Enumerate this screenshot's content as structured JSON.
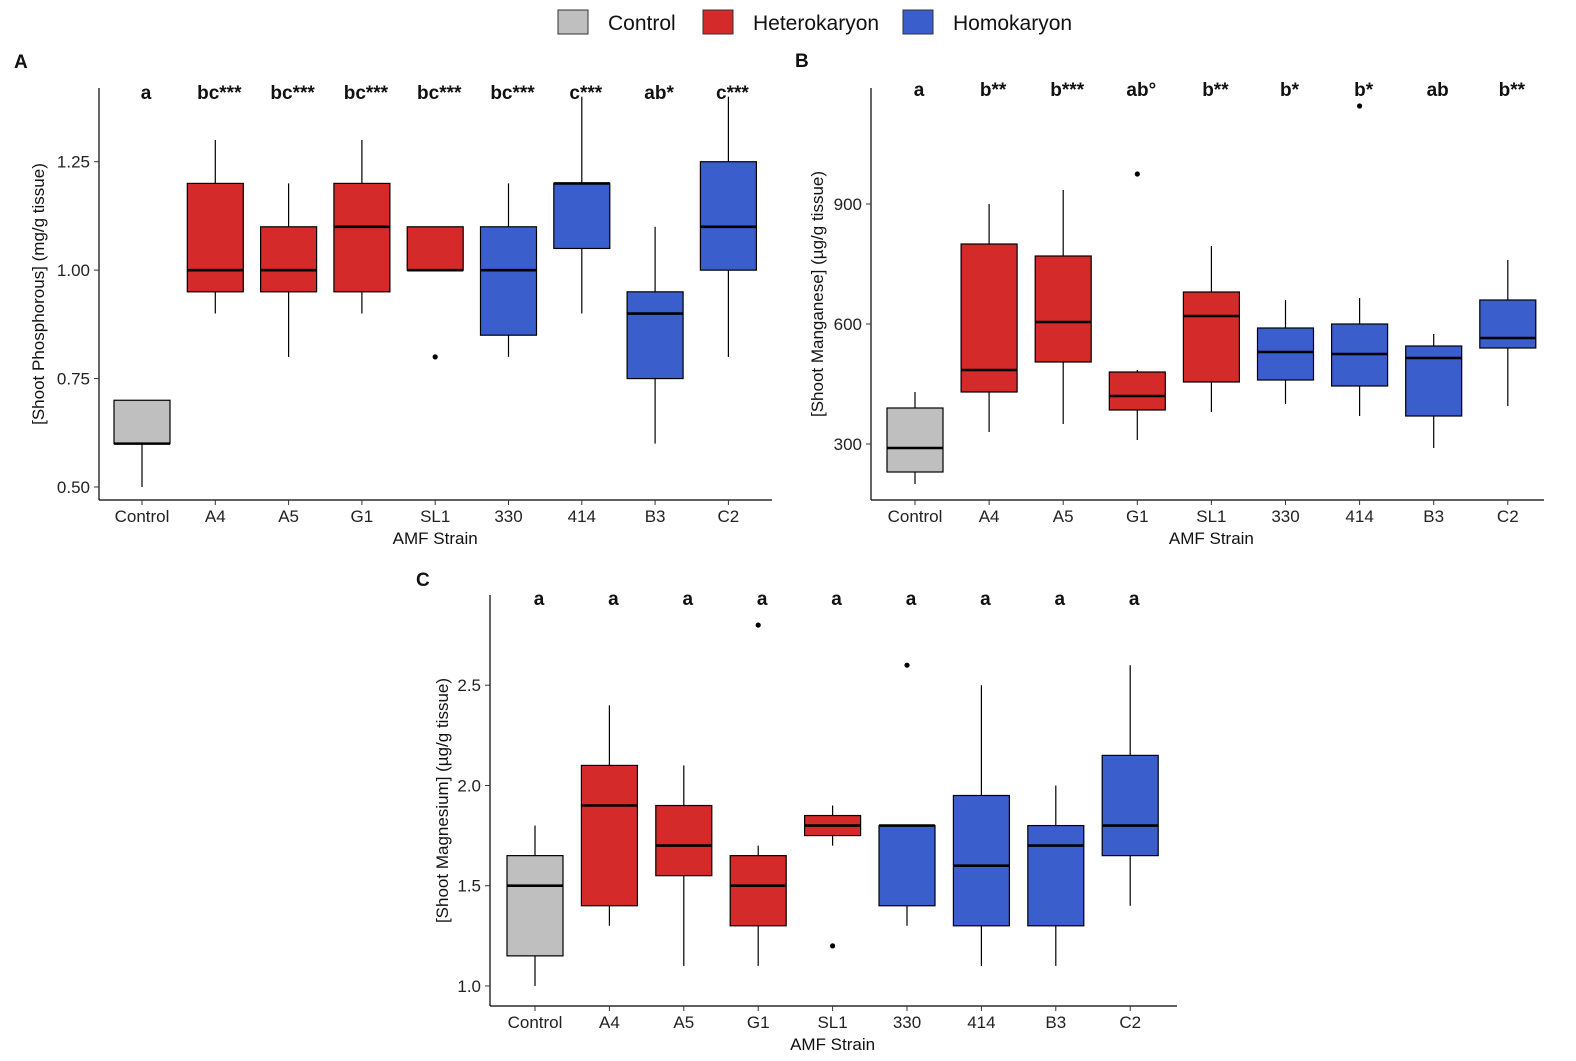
{
  "legend": [
    {
      "label": "Control",
      "color": "#bfbfbf"
    },
    {
      "label": "Heterokaryon",
      "color": "#d42a2a"
    },
    {
      "label": "Homokaryon",
      "color": "#3a5fcd"
    }
  ],
  "chart_data": [
    {
      "panel": "A",
      "type": "box",
      "xlabel": "AMF Strain",
      "ylabel": "[Shoot Phosphorous] (mg/g tissue)",
      "ylim": [
        0.47,
        1.42
      ],
      "yticks": [
        0.5,
        0.75,
        1.0,
        1.25
      ],
      "ytick_labels": [
        "0.50",
        "0.75",
        "1.00",
        "1.25"
      ],
      "categories": [
        "Control",
        "A4",
        "A5",
        "G1",
        "SL1",
        "330",
        "414",
        "B3",
        "C2"
      ],
      "groups": [
        "Control",
        "Heterokaryon",
        "Heterokaryon",
        "Heterokaryon",
        "Heterokaryon",
        "Homokaryon",
        "Homokaryon",
        "Homokaryon",
        "Homokaryon"
      ],
      "boxes": [
        {
          "min": 0.5,
          "q1": 0.6,
          "median": 0.6,
          "q3": 0.7,
          "max": 0.7,
          "outliers": []
        },
        {
          "min": 0.9,
          "q1": 0.95,
          "median": 1.0,
          "q3": 1.2,
          "max": 1.3,
          "outliers": []
        },
        {
          "min": 0.8,
          "q1": 0.95,
          "median": 1.0,
          "q3": 1.1,
          "max": 1.2,
          "outliers": []
        },
        {
          "min": 0.9,
          "q1": 0.95,
          "median": 1.1,
          "q3": 1.2,
          "max": 1.3,
          "outliers": []
        },
        {
          "min": 1.0,
          "q1": 1.0,
          "median": 1.0,
          "q3": 1.1,
          "max": 1.1,
          "outliers": [
            0.8
          ]
        },
        {
          "min": 0.8,
          "q1": 0.85,
          "median": 1.0,
          "q3": 1.1,
          "max": 1.2,
          "outliers": []
        },
        {
          "min": 0.9,
          "q1": 1.05,
          "median": 1.2,
          "q3": 1.2,
          "max": 1.4,
          "outliers": []
        },
        {
          "min": 0.6,
          "q1": 0.75,
          "median": 0.9,
          "q3": 0.95,
          "max": 1.1,
          "outliers": []
        },
        {
          "min": 0.8,
          "q1": 1.0,
          "median": 1.1,
          "q3": 1.25,
          "max": 1.4,
          "outliers": []
        }
      ],
      "sig_letters": [
        "a",
        "bc***",
        "bc***",
        "bc***",
        "bc***",
        "bc***",
        "c***",
        "ab*",
        "c***"
      ]
    },
    {
      "panel": "B",
      "type": "box",
      "xlabel": "AMF Strain",
      "ylabel": "[Shoot Manganese] (µg/g tissue)",
      "ylim": [
        160,
        1190
      ],
      "yticks": [
        300,
        600,
        900
      ],
      "ytick_labels": [
        "300",
        "600",
        "900"
      ],
      "categories": [
        "Control",
        "A4",
        "A5",
        "G1",
        "SL1",
        "330",
        "414",
        "B3",
        "C2"
      ],
      "groups": [
        "Control",
        "Heterokaryon",
        "Heterokaryon",
        "Heterokaryon",
        "Heterokaryon",
        "Homokaryon",
        "Homokaryon",
        "Homokaryon",
        "Homokaryon"
      ],
      "boxes": [
        {
          "min": 200,
          "q1": 230,
          "median": 290,
          "q3": 390,
          "max": 430,
          "outliers": []
        },
        {
          "min": 330,
          "q1": 430,
          "median": 485,
          "q3": 800,
          "max": 900,
          "outliers": []
        },
        {
          "min": 350,
          "q1": 505,
          "median": 605,
          "q3": 770,
          "max": 935,
          "outliers": []
        },
        {
          "min": 310,
          "q1": 385,
          "median": 420,
          "q3": 480,
          "max": 485,
          "outliers": [
            975
          ]
        },
        {
          "min": 380,
          "q1": 455,
          "median": 620,
          "q3": 680,
          "max": 795,
          "outliers": []
        },
        {
          "min": 400,
          "q1": 460,
          "median": 530,
          "q3": 590,
          "max": 660,
          "outliers": []
        },
        {
          "min": 370,
          "q1": 445,
          "median": 525,
          "q3": 600,
          "max": 665,
          "outliers": [
            1145
          ]
        },
        {
          "min": 290,
          "q1": 370,
          "median": 515,
          "q3": 545,
          "max": 575,
          "outliers": []
        },
        {
          "min": 395,
          "q1": 540,
          "median": 565,
          "q3": 660,
          "max": 760,
          "outliers": []
        }
      ],
      "sig_letters": [
        "a",
        "b**",
        "b***",
        "ab°",
        "b**",
        "b*",
        "b*",
        "ab",
        "b**"
      ]
    },
    {
      "panel": "C",
      "type": "box",
      "xlabel": "AMF Strain",
      "ylabel": "[Shoot Magnesium] (µg/g tissue)",
      "ylim": [
        0.9,
        2.95
      ],
      "yticks": [
        1.0,
        1.5,
        2.0,
        2.5
      ],
      "ytick_labels": [
        "1.0",
        "1.5",
        "2.0",
        "2.5"
      ],
      "categories": [
        "Control",
        "A4",
        "A5",
        "G1",
        "SL1",
        "330",
        "414",
        "B3",
        "C2"
      ],
      "groups": [
        "Control",
        "Heterokaryon",
        "Heterokaryon",
        "Heterokaryon",
        "Heterokaryon",
        "Homokaryon",
        "Homokaryon",
        "Homokaryon",
        "Homokaryon"
      ],
      "boxes": [
        {
          "min": 1.0,
          "q1": 1.15,
          "median": 1.5,
          "q3": 1.65,
          "max": 1.8,
          "outliers": []
        },
        {
          "min": 1.3,
          "q1": 1.4,
          "median": 1.9,
          "q3": 2.1,
          "max": 2.4,
          "outliers": []
        },
        {
          "min": 1.1,
          "q1": 1.55,
          "median": 1.7,
          "q3": 1.9,
          "max": 2.1,
          "outliers": []
        },
        {
          "min": 1.1,
          "q1": 1.3,
          "median": 1.5,
          "q3": 1.65,
          "max": 1.7,
          "outliers": [
            2.8
          ]
        },
        {
          "min": 1.7,
          "q1": 1.75,
          "median": 1.8,
          "q3": 1.85,
          "max": 1.9,
          "outliers": [
            1.2
          ]
        },
        {
          "min": 1.3,
          "q1": 1.4,
          "median": 1.8,
          "q3": 1.8,
          "max": 1.8,
          "outliers": [
            2.6
          ]
        },
        {
          "min": 1.1,
          "q1": 1.3,
          "median": 1.6,
          "q3": 1.95,
          "max": 2.5,
          "outliers": []
        },
        {
          "min": 1.1,
          "q1": 1.3,
          "median": 1.7,
          "q3": 1.8,
          "max": 2.0,
          "outliers": []
        },
        {
          "min": 1.4,
          "q1": 1.65,
          "median": 1.8,
          "q3": 2.15,
          "max": 2.6,
          "outliers": []
        }
      ],
      "sig_letters": [
        "a",
        "a",
        "a",
        "a",
        "a",
        "a",
        "a",
        "a",
        "a"
      ]
    }
  ]
}
